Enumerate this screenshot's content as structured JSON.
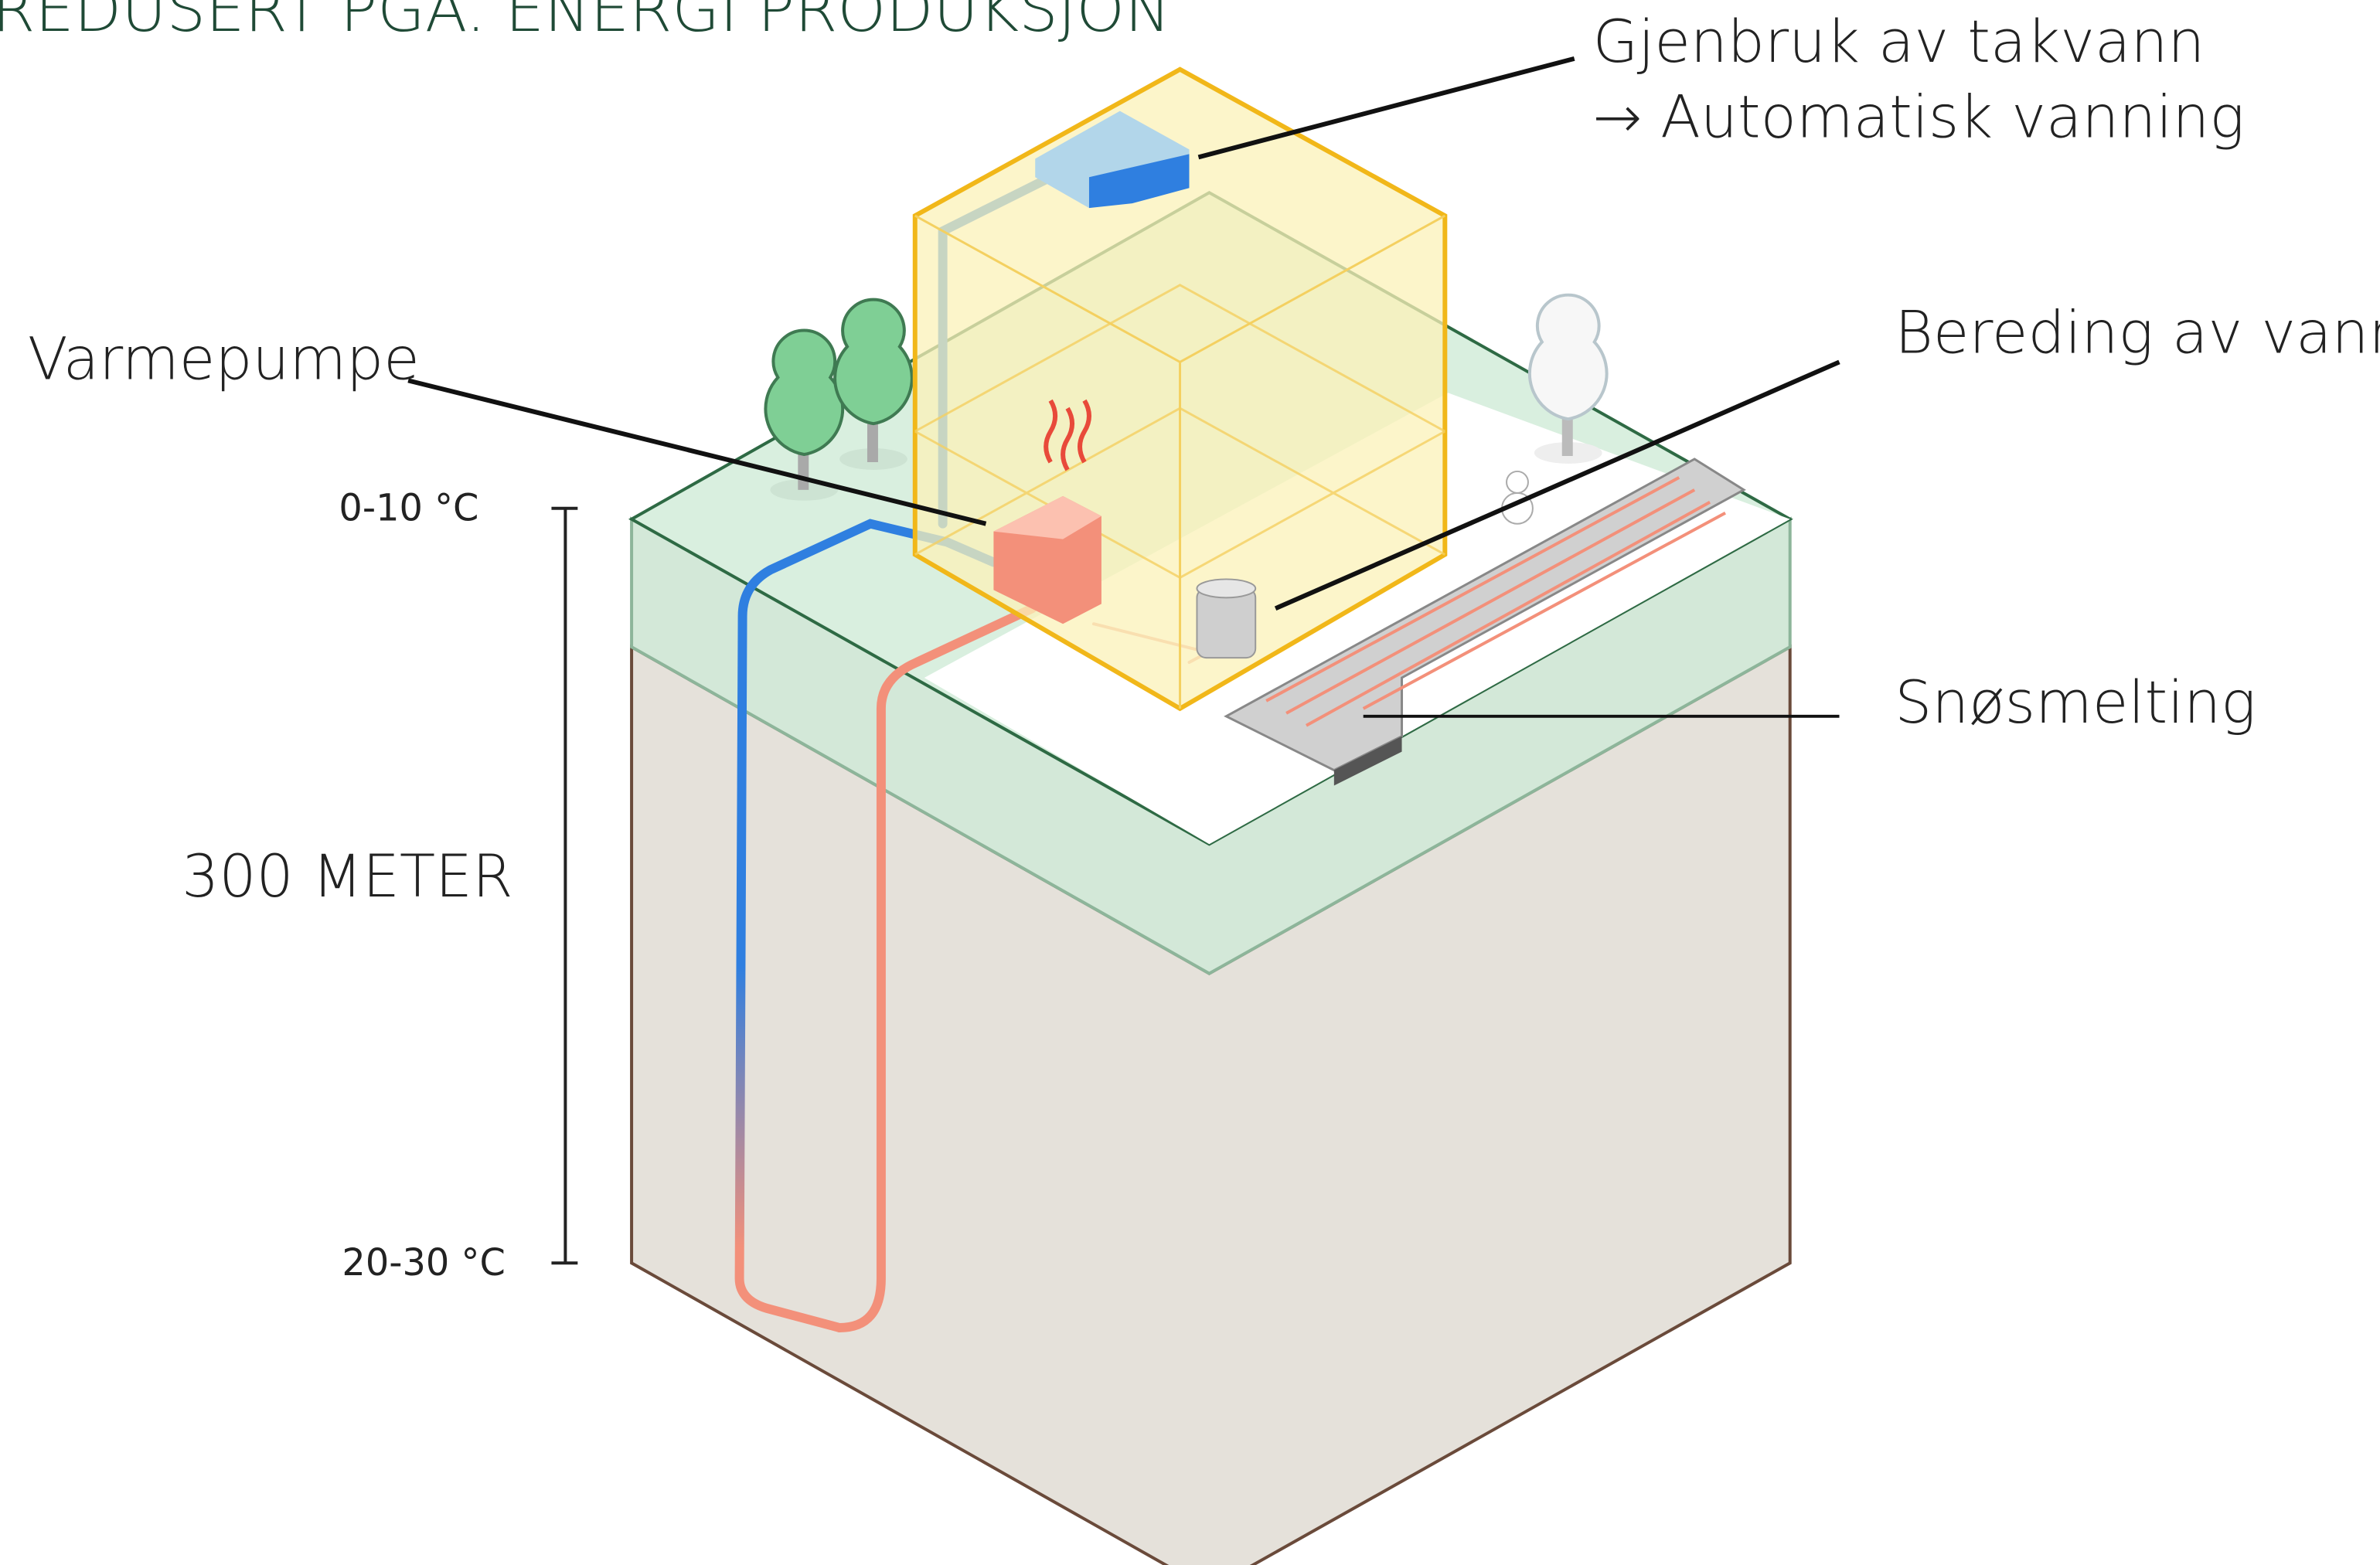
{
  "title": "REDUSERT PGA. ENERGI PRODUKSJON",
  "labels": {
    "roof_water": "Gjenbruk av takvann",
    "irrigation": "→ Automatisk vanning",
    "heat_pump": "Varmepumpe",
    "water_heating": "Bereding av vann",
    "snow_melting": "Snøsmelting",
    "depth": "300 METER",
    "top_temp": "0-10  °C",
    "bottom_temp": "20-30  °C"
  }
}
